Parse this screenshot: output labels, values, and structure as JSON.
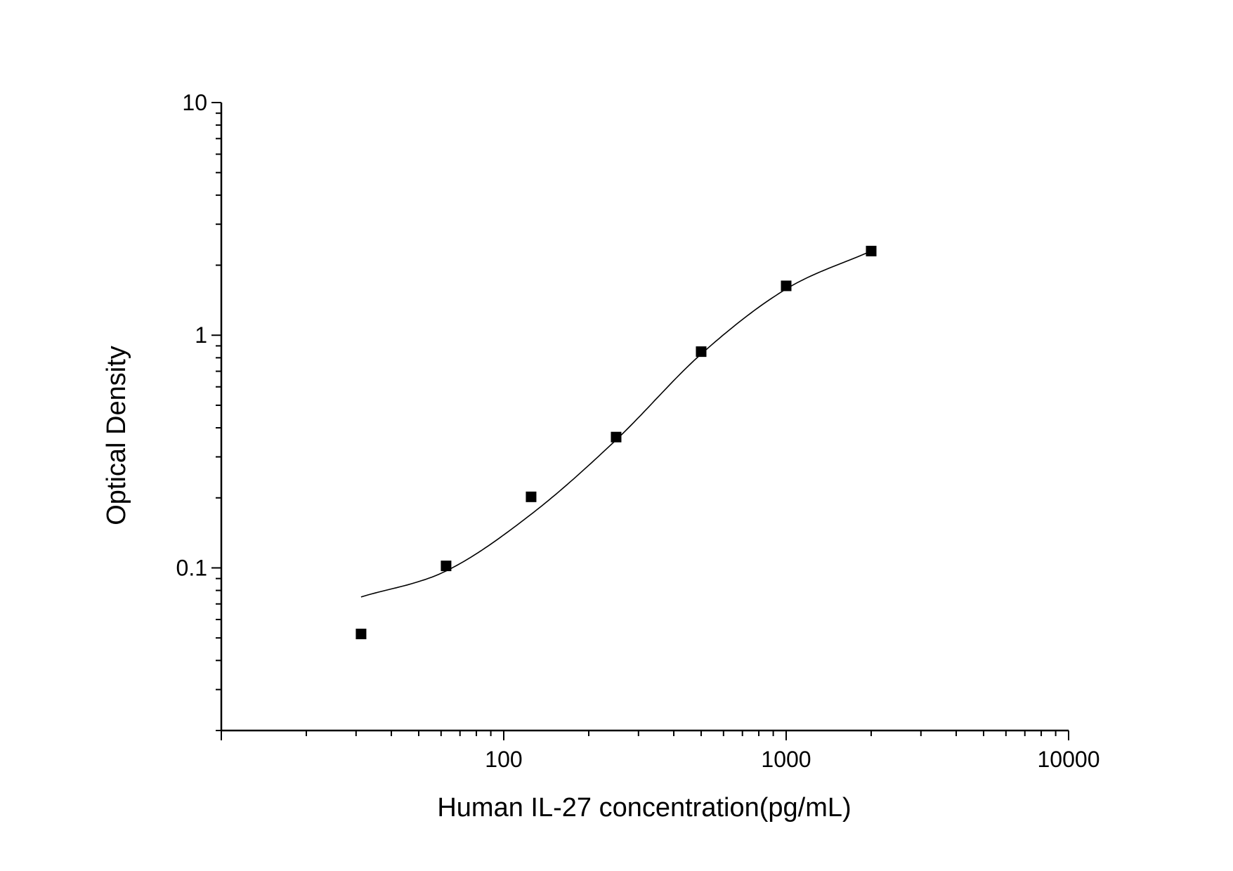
{
  "chart_data": {
    "type": "scatter",
    "title": "",
    "xlabel": "Human IL-27 concentration(pg/mL)",
    "ylabel": "Optical Density",
    "xscale": "log",
    "yscale": "log",
    "xlim": [
      10,
      10000
    ],
    "ylim": [
      0.02,
      10
    ],
    "x_ticks": [
      {
        "value": 100,
        "label": "100"
      },
      {
        "value": 1000,
        "label": "1000"
      },
      {
        "value": 10000,
        "label": "10000"
      }
    ],
    "y_ticks": [
      {
        "value": 0.1,
        "label": "0.1"
      },
      {
        "value": 1,
        "label": "1"
      },
      {
        "value": 10,
        "label": "10"
      }
    ],
    "grid": false,
    "legend": "none",
    "series": [
      {
        "values": [
          {
            "x": 31.25,
            "y": 0.052
          },
          {
            "x": 62.5,
            "y": 0.102
          },
          {
            "x": 125,
            "y": 0.202
          },
          {
            "x": 250,
            "y": 0.365
          },
          {
            "x": 500,
            "y": 0.85
          },
          {
            "x": 1000,
            "y": 1.63
          },
          {
            "x": 2000,
            "y": 2.3
          }
        ],
        "marker": "square",
        "color": "#000000"
      }
    ],
    "fit_curve": {
      "type": "4-parameter logistic",
      "color": "#000000",
      "x_range": [
        31.25,
        2000
      ]
    }
  }
}
